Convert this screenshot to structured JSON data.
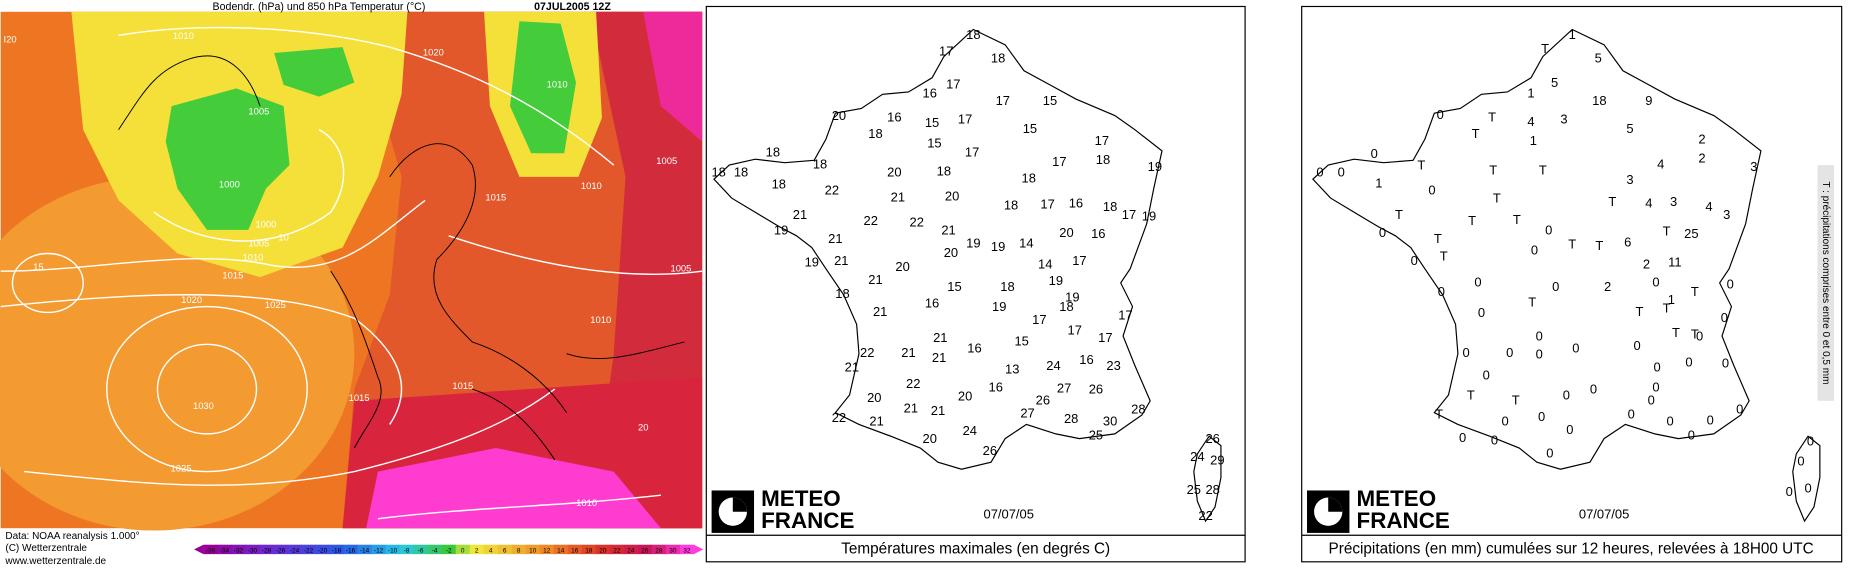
{
  "weather_map": {
    "title": "Bodendr. (hPa) und 850 hPa Temperatur (°C)",
    "date": "07JUL2005 12Z",
    "isobar_labels": [
      "I20",
      "1010",
      "1020",
      "1010",
      "1005",
      "1005",
      "1000",
      "1010",
      "1015",
      "1000",
      "10",
      "1005",
      "1010",
      "1015",
      "1005",
      "15",
      "1020",
      "1025",
      "1010",
      "1015",
      "1015",
      "1030",
      "20",
      "1025",
      "1010"
    ],
    "colorbar_ticks": [
      -36,
      -34,
      -32,
      -30,
      -28,
      -26,
      -24,
      -22,
      -20,
      -18,
      -16,
      -14,
      -12,
      -10,
      -8,
      -6,
      -4,
      -2,
      0,
      2,
      4,
      6,
      8,
      10,
      12,
      14,
      16,
      18,
      20,
      22,
      24,
      26,
      28,
      30,
      32
    ],
    "credits": [
      "Data: NOAA reanalysis 1.000°",
      "(C) Wetterzentrale",
      "www.wetterzentrale.de"
    ]
  },
  "temperature_map": {
    "logo": [
      "METEO",
      "FRANCE"
    ],
    "date": "07/07/05",
    "caption": "Températures maximales (en degrés C)",
    "stations": [
      18,
      17,
      18,
      17,
      16,
      17,
      15,
      20,
      16,
      15,
      17,
      15,
      18,
      15,
      17,
      17,
      18,
      18,
      17,
      18,
      19,
      18,
      18,
      20,
      18,
      18,
      18,
      22,
      21,
      20,
      18,
      17,
      16,
      18,
      17,
      19,
      21,
      22,
      22,
      21,
      19,
      20,
      16,
      21,
      19,
      19,
      14,
      20,
      19,
      21,
      14,
      17,
      20,
      21,
      19,
      15,
      18,
      18,
      19,
      16,
      19,
      18,
      21,
      17,
      17,
      17,
      17,
      21,
      15,
      16,
      22,
      21,
      21,
      16,
      23,
      24,
      21,
      13,
      22,
      16,
      27,
      26,
      20,
      20,
      26,
      21,
      21,
      28,
      27,
      22,
      28,
      21,
      30,
      24,
      25,
      20,
      26,
      26,
      24,
      29,
      25,
      28,
      22
    ]
  },
  "precipitation_map": {
    "logo": [
      "METEO",
      "FRANCE"
    ],
    "date": "07/07/05",
    "caption": "Précipitations (en mm) cumulées sur 12 heures, relevées à 18H00 UTC",
    "legend": "T : précipitations comprises entre 0 et 0,5 mm",
    "stations": [
      "T",
      1,
      5,
      5,
      1,
      18,
      9,
      0,
      "T",
      4,
      3,
      5,
      "T",
      1,
      2,
      0,
      2,
      4,
      "T",
      3,
      "T",
      "T",
      0,
      0,
      3,
      1,
      0,
      "T",
      "T",
      4,
      3,
      4,
      3,
      "T",
      "T",
      "T",
      0,
      "T",
      0,
      25,
      "T",
      6,
      "T",
      "T",
      0,
      "T",
      0,
      11,
      2,
      0,
      0,
      0,
      0,
      2,
      "T",
      0,
      1,
      "T",
      "T",
      "T",
      0,
      0,
      "T",
      "T",
      0,
      0,
      0,
      0,
      0,
      0,
      0,
      0,
      0,
      0,
      0,
      0,
      0,
      "T",
      0,
      "T",
      0,
      0,
      0,
      "T",
      0,
      0,
      0,
      0,
      0,
      0,
      0,
      0,
      0,
      0,
      0,
      0,
      0
    ]
  }
}
